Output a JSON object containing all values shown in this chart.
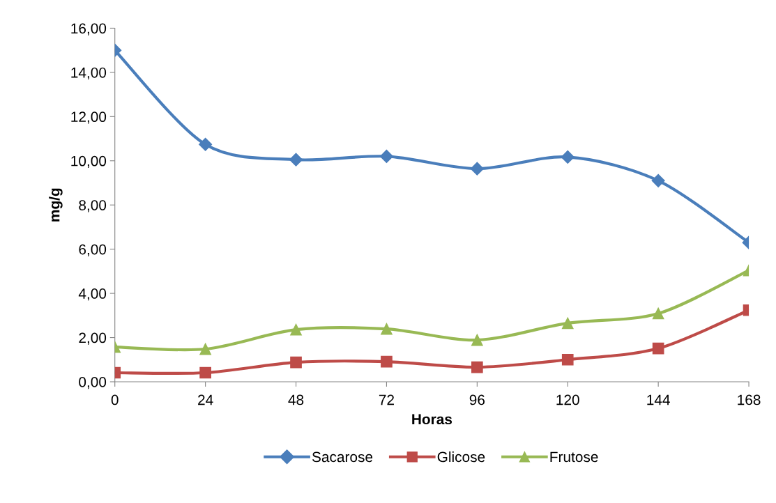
{
  "chart_data": {
    "type": "line",
    "xlabel": "Horas",
    "ylabel": "mg/g",
    "x": [
      0,
      24,
      48,
      72,
      96,
      120,
      144,
      168
    ],
    "xlim": [
      0,
      168
    ],
    "xticks": [
      0,
      24,
      48,
      72,
      96,
      120,
      144,
      168
    ],
    "ylim": [
      0,
      16
    ],
    "yticks": [
      {
        "value": 0,
        "label": "0,00"
      },
      {
        "value": 2,
        "label": "2,00"
      },
      {
        "value": 4,
        "label": "4,00"
      },
      {
        "value": 6,
        "label": "6,00"
      },
      {
        "value": 8,
        "label": "8,00"
      },
      {
        "value": 10,
        "label": "10,00"
      },
      {
        "value": 12,
        "label": "12,00"
      },
      {
        "value": 14,
        "label": "14,00"
      },
      {
        "value": 16,
        "label": "16,00"
      }
    ],
    "grid": false,
    "legend": "bottom",
    "line_style": "solid",
    "series": [
      {
        "name": "Sacarose",
        "color": "#4a7ebb",
        "marker": "diamond",
        "values": [
          15.0,
          10.74,
          10.05,
          10.2,
          9.64,
          10.17,
          9.1,
          6.3
        ]
      },
      {
        "name": "Glicose",
        "color": "#be4b48",
        "marker": "square",
        "values": [
          0.41,
          0.41,
          0.88,
          0.91,
          0.66,
          1.0,
          1.51,
          3.24
        ]
      },
      {
        "name": "Frutose",
        "color": "#98b954",
        "marker": "triangle",
        "values": [
          1.57,
          1.48,
          2.36,
          2.39,
          1.89,
          2.65,
          3.09,
          5.04
        ]
      }
    ]
  }
}
